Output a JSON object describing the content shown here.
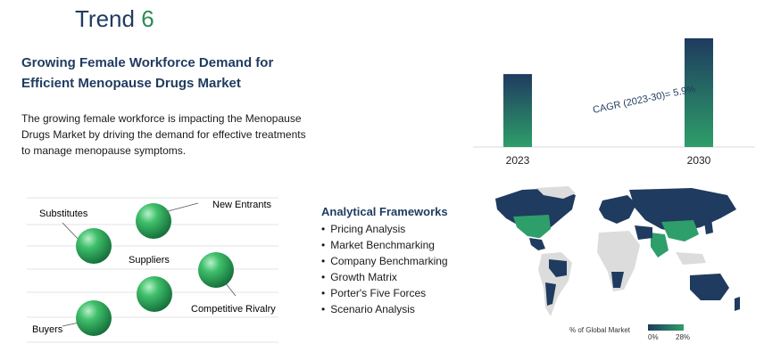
{
  "trend": {
    "word": "Trend",
    "number": "6"
  },
  "headline": "Growing Female Workforce Demand for Efficient Menopause Drugs Market",
  "description": "The growing female workforce is impacting the Menopause Drugs Market by driving the demand for effective treatments to manage menopause symptoms.",
  "chart_data": {
    "type": "bar",
    "categories": [
      "2023",
      "2030"
    ],
    "values": [
      1.0,
      1.49
    ],
    "annotation": "CAGR (2023-30)= 5.9%",
    "colors": [
      "#1f3b5f",
      "#2e9e6a"
    ]
  },
  "forces": {
    "substitutes": "Substitutes",
    "new_entrants": "New Entrants",
    "suppliers": "Suppliers",
    "competitive_rivalry": "Competitive Rivalry",
    "buyers": "Buyers"
  },
  "frameworks": {
    "title": "Analytical Frameworks",
    "items": [
      "Pricing Analysis",
      "Market Benchmarking",
      "Company Benchmarking",
      "Growth Matrix",
      "Porter's Five Forces",
      "Scenario Analysis"
    ]
  },
  "map_legend": {
    "label": "% of Global Market",
    "min": "0%",
    "max": "28%"
  }
}
